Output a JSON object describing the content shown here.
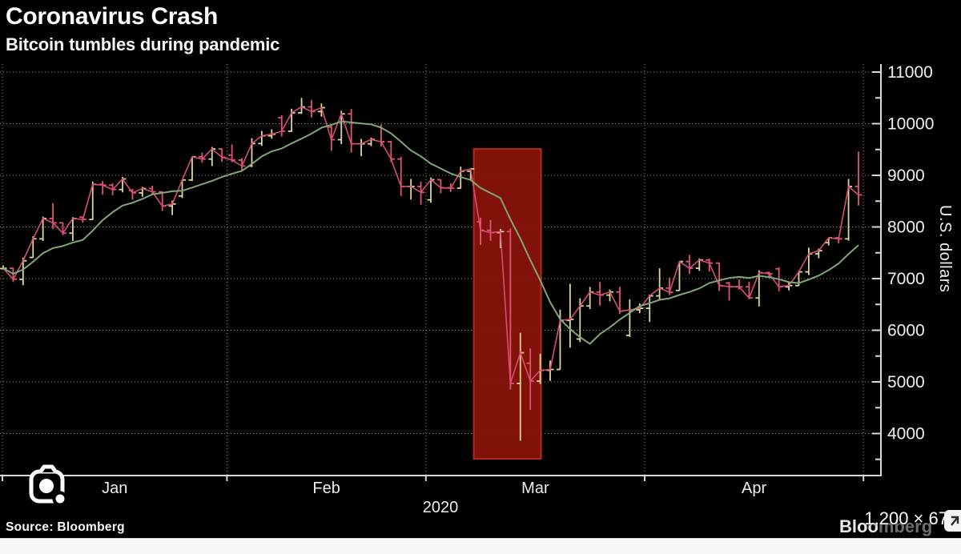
{
  "header": {
    "title": "Coronavirus Crash",
    "subtitle": "Bitcoin tumbles during pandemic"
  },
  "footer": {
    "source": "Source:  Bloomberg",
    "watermark": {
      "text": "Bloomberg",
      "bright_part": "Bloo",
      "dim_part": "mberg"
    }
  },
  "overlay": {
    "dimensions_text": "1,200 × 67",
    "camera_icon": "google-lens-camera"
  },
  "chart_data": {
    "type": "ohlc-bar",
    "title": "Coronavirus Crash",
    "subtitle": "Bitcoin tumbles during pandemic",
    "xlabel": "",
    "ylabel": "U.S. dollars",
    "grid": true,
    "ylim": [
      3170,
      11160
    ],
    "y_axis": {
      "label": "U.S. dollars",
      "min": 4000,
      "max": 11000,
      "step": 1000,
      "minor_step": 500
    },
    "x_axis": {
      "labels": [
        "Jan",
        "Feb",
        "Mar",
        "Apr"
      ],
      "year": "2020"
    },
    "ma_period": 9,
    "colors": {
      "up_bar": "#dcd69e",
      "down_bar": "#e05577",
      "close_line": "#d74e71",
      "ma_line": "#82a678",
      "highlight_fill": "#8a130a",
      "highlight_stroke": "#b02c20",
      "grid": "#c9c9b4",
      "axis": "#d8d8d8",
      "background": "#000000"
    },
    "highlight": {
      "start_date": "2020-03-06",
      "end_date": "2020-03-17",
      "value_top": 9510,
      "value_bottom": 3510
    },
    "series_columns": [
      "date",
      "open",
      "high",
      "low",
      "close"
    ],
    "series": [
      [
        "2020-01-01",
        7195,
        7255,
        7175,
        7200
      ],
      [
        "2020-01-02",
        7200,
        7212,
        6935,
        6985
      ],
      [
        "2020-01-03",
        6985,
        7405,
        6871,
        7345
      ],
      [
        "2020-01-06",
        7410,
        7820,
        7406,
        7770
      ],
      [
        "2020-01-07",
        7770,
        8200,
        7730,
        8165
      ],
      [
        "2020-01-08",
        8165,
        8460,
        7962,
        8080
      ],
      [
        "2020-01-09",
        8080,
        8082,
        7842,
        7880
      ],
      [
        "2020-01-10",
        7880,
        8190,
        7730,
        8165
      ],
      [
        "2020-01-13",
        8190,
        8197,
        8080,
        8145
      ],
      [
        "2020-01-14",
        8145,
        8880,
        8135,
        8825
      ],
      [
        "2020-01-15",
        8825,
        8890,
        8625,
        8810
      ],
      [
        "2020-01-16",
        8810,
        8846,
        8615,
        8725
      ],
      [
        "2020-01-17",
        8725,
        8970,
        8670,
        8930
      ],
      [
        "2020-01-20",
        8705,
        8740,
        8530,
        8660
      ],
      [
        "2020-01-21",
        8660,
        8775,
        8585,
        8745
      ],
      [
        "2020-01-22",
        8745,
        8800,
        8625,
        8680
      ],
      [
        "2020-01-23",
        8680,
        8690,
        8310,
        8405
      ],
      [
        "2020-01-24",
        8405,
        8510,
        8230,
        8445
      ],
      [
        "2020-01-27",
        8600,
        8915,
        8560,
        8910
      ],
      [
        "2020-01-28",
        8910,
        9360,
        8890,
        9360
      ],
      [
        "2020-01-29",
        9360,
        9440,
        9245,
        9315
      ],
      [
        "2020-01-30",
        9315,
        9550,
        9180,
        9510
      ],
      [
        "2020-01-31",
        9510,
        9520,
        9260,
        9350
      ],
      [
        "2020-02-03",
        9390,
        9600,
        9255,
        9295
      ],
      [
        "2020-02-04",
        9295,
        9335,
        9090,
        9180
      ],
      [
        "2020-02-05",
        9180,
        9720,
        9160,
        9615
      ],
      [
        "2020-02-06",
        9615,
        9860,
        9570,
        9765
      ],
      [
        "2020-02-07",
        9765,
        9890,
        9710,
        9795
      ],
      [
        "2020-02-10",
        10115,
        10165,
        9750,
        9855
      ],
      [
        "2020-02-11",
        9855,
        10290,
        9840,
        10210
      ],
      [
        "2020-02-12",
        10210,
        10500,
        10190,
        10325
      ],
      [
        "2020-02-13",
        10325,
        10460,
        10120,
        10235
      ],
      [
        "2020-02-14",
        10235,
        10390,
        10135,
        10310
      ],
      [
        "2020-02-17",
        9935,
        9965,
        9475,
        9690
      ],
      [
        "2020-02-18",
        9690,
        10250,
        9605,
        10190
      ],
      [
        "2020-02-19",
        10190,
        10285,
        9440,
        9610
      ],
      [
        "2020-02-20",
        9610,
        9705,
        9370,
        9610
      ],
      [
        "2020-02-21",
        9610,
        9730,
        9565,
        9695
      ],
      [
        "2020-02-24",
        9940,
        9985,
        9560,
        9650
      ],
      [
        "2020-02-25",
        9650,
        9670,
        9255,
        9315
      ],
      [
        "2020-02-26",
        9315,
        9360,
        8600,
        8785
      ],
      [
        "2020-02-27",
        8785,
        8930,
        8530,
        8785
      ],
      [
        "2020-02-28",
        8785,
        8880,
        8430,
        8670
      ],
      [
        "2020-03-02",
        8525,
        8960,
        8470,
        8915
      ],
      [
        "2020-03-03",
        8915,
        8920,
        8650,
        8760
      ],
      [
        "2020-03-04",
        8760,
        8845,
        8680,
        8750
      ],
      [
        "2020-03-05",
        8750,
        9170,
        8745,
        9080
      ],
      [
        "2020-03-06",
        9080,
        9135,
        8900,
        9125
      ],
      [
        "2020-03-09",
        8100,
        8180,
        7650,
        7935
      ],
      [
        "2020-03-10",
        7935,
        8135,
        7730,
        7890
      ],
      [
        "2020-03-11",
        7890,
        7960,
        7590,
        7910
      ],
      [
        "2020-03-12",
        7910,
        7970,
        4850,
        4970
      ],
      [
        "2020-03-13",
        4970,
        5950,
        3860,
        5565
      ],
      [
        "2020-03-16",
        5360,
        5650,
        4460,
        5015
      ],
      [
        "2020-03-17",
        5015,
        5545,
        4960,
        5225
      ],
      [
        "2020-03-18",
        5225,
        5415,
        5020,
        5240
      ],
      [
        "2020-03-19",
        5240,
        6400,
        5240,
        6190
      ],
      [
        "2020-03-20",
        6190,
        6900,
        5660,
        6210
      ],
      [
        "2020-03-23",
        5830,
        6620,
        5770,
        6470
      ],
      [
        "2020-03-24",
        6470,
        6840,
        6410,
        6740
      ],
      [
        "2020-03-25",
        6740,
        6935,
        6475,
        6680
      ],
      [
        "2020-03-26",
        6680,
        6790,
        6560,
        6740
      ],
      [
        "2020-03-27",
        6740,
        6840,
        6315,
        6370
      ],
      [
        "2020-03-30",
        5900,
        6600,
        5870,
        6395
      ],
      [
        "2020-03-31",
        6395,
        6520,
        6330,
        6425
      ],
      [
        "2020-04-01",
        6425,
        6690,
        6160,
        6665
      ],
      [
        "2020-04-02",
        6665,
        7200,
        6575,
        6815
      ],
      [
        "2020-04-03",
        6815,
        7020,
        6680,
        6735
      ],
      [
        "2020-04-06",
        6770,
        7340,
        6770,
        7330
      ],
      [
        "2020-04-07",
        7330,
        7460,
        7090,
        7200
      ],
      [
        "2020-04-08",
        7200,
        7390,
        7150,
        7360
      ],
      [
        "2020-04-09",
        7360,
        7385,
        7135,
        7300
      ],
      [
        "2020-04-10",
        7300,
        7310,
        6760,
        6865
      ],
      [
        "2020-04-13",
        6915,
        6935,
        6575,
        6845
      ],
      [
        "2020-04-14",
        6845,
        6985,
        6790,
        6840
      ],
      [
        "2020-04-15",
        6840,
        6940,
        6600,
        6625
      ],
      [
        "2020-04-16",
        6625,
        7160,
        6460,
        7115
      ],
      [
        "2020-04-17",
        7115,
        7135,
        7010,
        7095
      ],
      [
        "2020-04-20",
        7190,
        7220,
        6755,
        6840
      ],
      [
        "2020-04-21",
        6840,
        6940,
        6770,
        6865
      ],
      [
        "2020-04-22",
        6865,
        7150,
        6860,
        7130
      ],
      [
        "2020-04-23",
        7130,
        7600,
        7070,
        7480
      ],
      [
        "2020-04-24",
        7480,
        7580,
        7395,
        7540
      ],
      [
        "2020-04-27",
        7695,
        7795,
        7640,
        7790
      ],
      [
        "2020-04-28",
        7790,
        7800,
        7680,
        7770
      ],
      [
        "2020-04-29",
        7770,
        8930,
        7735,
        8785
      ],
      [
        "2020-04-30",
        8785,
        9460,
        8415,
        8620
      ]
    ]
  }
}
